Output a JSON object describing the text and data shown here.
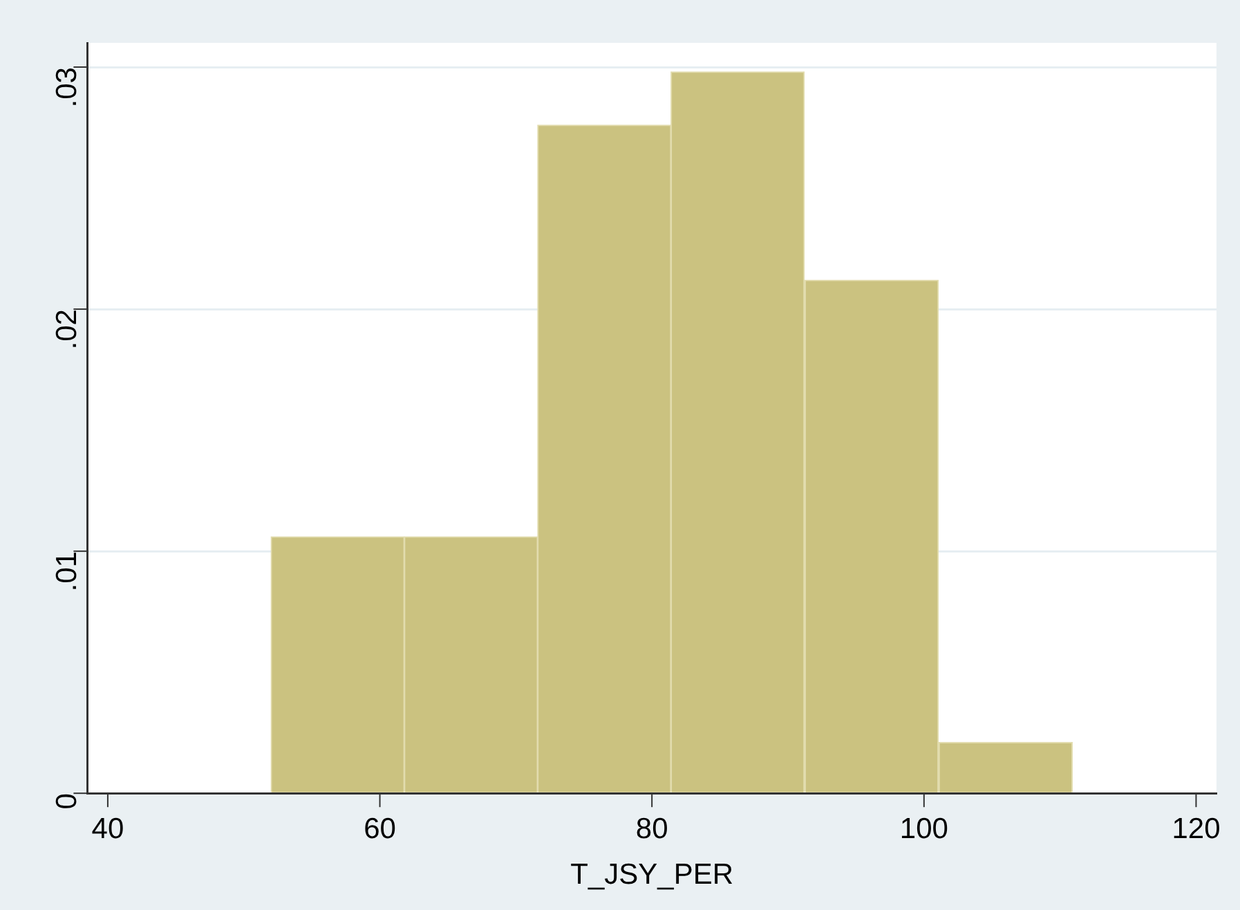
{
  "chart_data": {
    "type": "histogram",
    "xlabel": "T_JSY_PER",
    "bins": [
      52,
      61.8,
      71.6,
      81.4,
      91.2,
      101.1,
      110.9
    ],
    "values": [
      0.0106,
      0.0106,
      0.0276,
      0.0298,
      0.0212,
      0.0021
    ],
    "color": "#cbc280",
    "xlim": [
      38.5,
      121.5
    ],
    "xticks": [
      40,
      60,
      80,
      100,
      120
    ],
    "ylim": [
      0,
      0.031
    ],
    "yticks": [
      {
        "value": 0,
        "label": "0"
      },
      {
        "value": 0.01,
        "label": ".01"
      },
      {
        "value": 0.02,
        "label": ".02"
      },
      {
        "value": 0.03,
        "label": ".03"
      }
    ],
    "grid": "y",
    "legend": false
  }
}
